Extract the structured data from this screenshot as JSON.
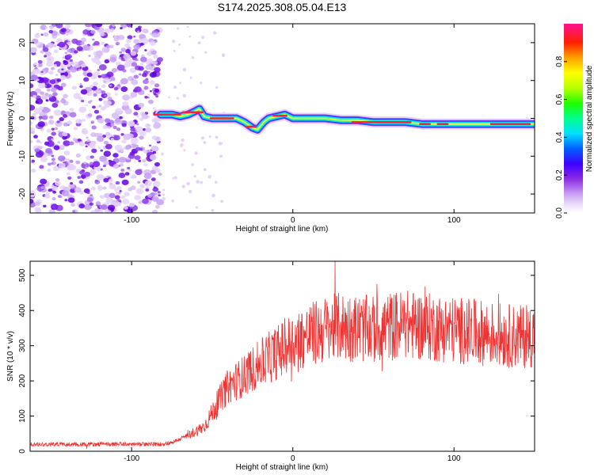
{
  "title": "S174.2025.308.05.04.E13",
  "chart_data": [
    {
      "type": "heatmap",
      "name": "spectrogram",
      "xlabel": "Height of straight line (km)",
      "ylabel": "Frequency (Hz)",
      "xlim": [
        -163,
        150
      ],
      "ylim": [
        -25,
        25
      ],
      "xticks": [
        -100,
        0,
        100
      ],
      "yticks": [
        -20,
        -10,
        0,
        10,
        20
      ],
      "colorbar": {
        "label": "Normalized spectral amplitude",
        "range": [
          0,
          1
        ],
        "ticks": [
          0.0,
          0.2,
          0.4,
          0.6,
          0.8
        ]
      },
      "noise_region_x": [
        -163,
        -82
      ],
      "signal_track": {
        "x": [
          -82,
          -75,
          -70,
          -65,
          -60,
          -58,
          -55,
          -50,
          -45,
          -40,
          -35,
          -30,
          -25,
          -22,
          -20,
          -18,
          -15,
          -10,
          -5,
          0,
          10,
          20,
          30,
          40,
          50,
          60,
          70,
          80,
          90,
          100,
          110,
          120,
          130,
          140,
          150
        ],
        "freq": [
          1,
          1,
          0.5,
          1,
          2,
          2.5,
          0.5,
          0,
          0,
          0,
          0,
          -1,
          -2.5,
          -3,
          -2,
          -1,
          0,
          0.5,
          1,
          0,
          0,
          0,
          -0.5,
          -0.5,
          -1,
          -1,
          -1,
          -1.5,
          -1.5,
          -1.5,
          -1.5,
          -1.5,
          -1.5,
          -1.5,
          -1.5
        ]
      }
    },
    {
      "type": "line",
      "name": "snr",
      "xlabel": "Height of straight line (km)",
      "ylabel": "SNR (10 * v/v)",
      "xlim": [
        -163,
        150
      ],
      "ylim": [
        0,
        540
      ],
      "xticks": [
        -100,
        0,
        100
      ],
      "yticks": [
        0,
        100,
        200,
        300,
        400,
        500
      ],
      "color": "#ef3232",
      "baseline": {
        "x": [
          -163,
          -82,
          -75,
          -65,
          -55,
          -50,
          -45,
          -40,
          -30,
          -20,
          -10,
          0,
          10,
          20,
          30,
          40,
          50,
          60,
          70,
          80,
          90,
          100,
          110,
          120,
          130,
          140,
          150
        ],
        "y": [
          20,
          20,
          25,
          45,
          70,
          110,
          150,
          185,
          215,
          250,
          280,
          310,
          330,
          345,
          355,
          350,
          345,
          355,
          360,
          355,
          350,
          345,
          340,
          335,
          330,
          325,
          330
        ]
      }
    }
  ]
}
